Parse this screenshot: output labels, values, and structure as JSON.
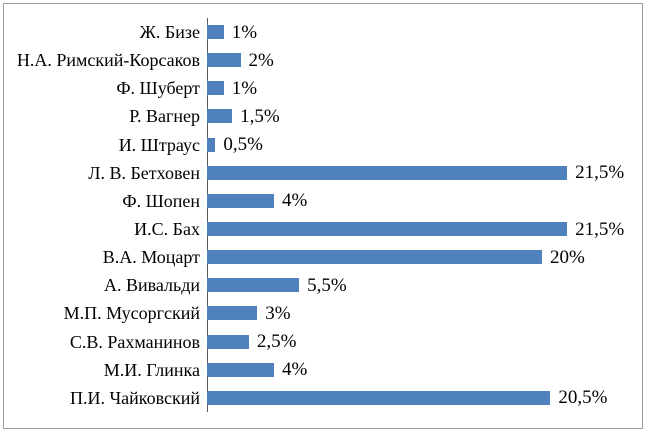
{
  "chart_data": {
    "type": "bar",
    "orientation": "horizontal",
    "grid": false,
    "legend": false,
    "bar_color": "#4f81bd",
    "axis_color": "#595959",
    "frame_border_color": "#9b9b9b",
    "xlim": [
      0,
      26
    ],
    "decimal_separator": ",",
    "categories": [
      "Ж. Бизе",
      "Н.А. Римский-Корсаков",
      "Ф. Шуберт",
      "Р. Вагнер",
      "И. Штраус",
      "Л. В. Бетховен",
      "Ф. Шопен",
      "И.С. Бах",
      "В.А. Моцарт",
      "А. Вивальди",
      "М.П. Мусоргский",
      "С.В. Рахманинов",
      "М.И. Глинка",
      "П.И. Чайковский"
    ],
    "values": [
      1,
      2,
      1,
      1.5,
      0.5,
      21.5,
      4,
      21.5,
      20,
      5.5,
      3,
      2.5,
      4,
      20.5
    ],
    "value_labels": [
      "1%",
      "2%",
      "1%",
      "1,5%",
      "0,5%",
      "21,5%",
      "4%",
      "21,5%",
      "20%",
      "5,5%",
      "3%",
      "2,5%",
      "4%",
      "20,5%"
    ]
  }
}
